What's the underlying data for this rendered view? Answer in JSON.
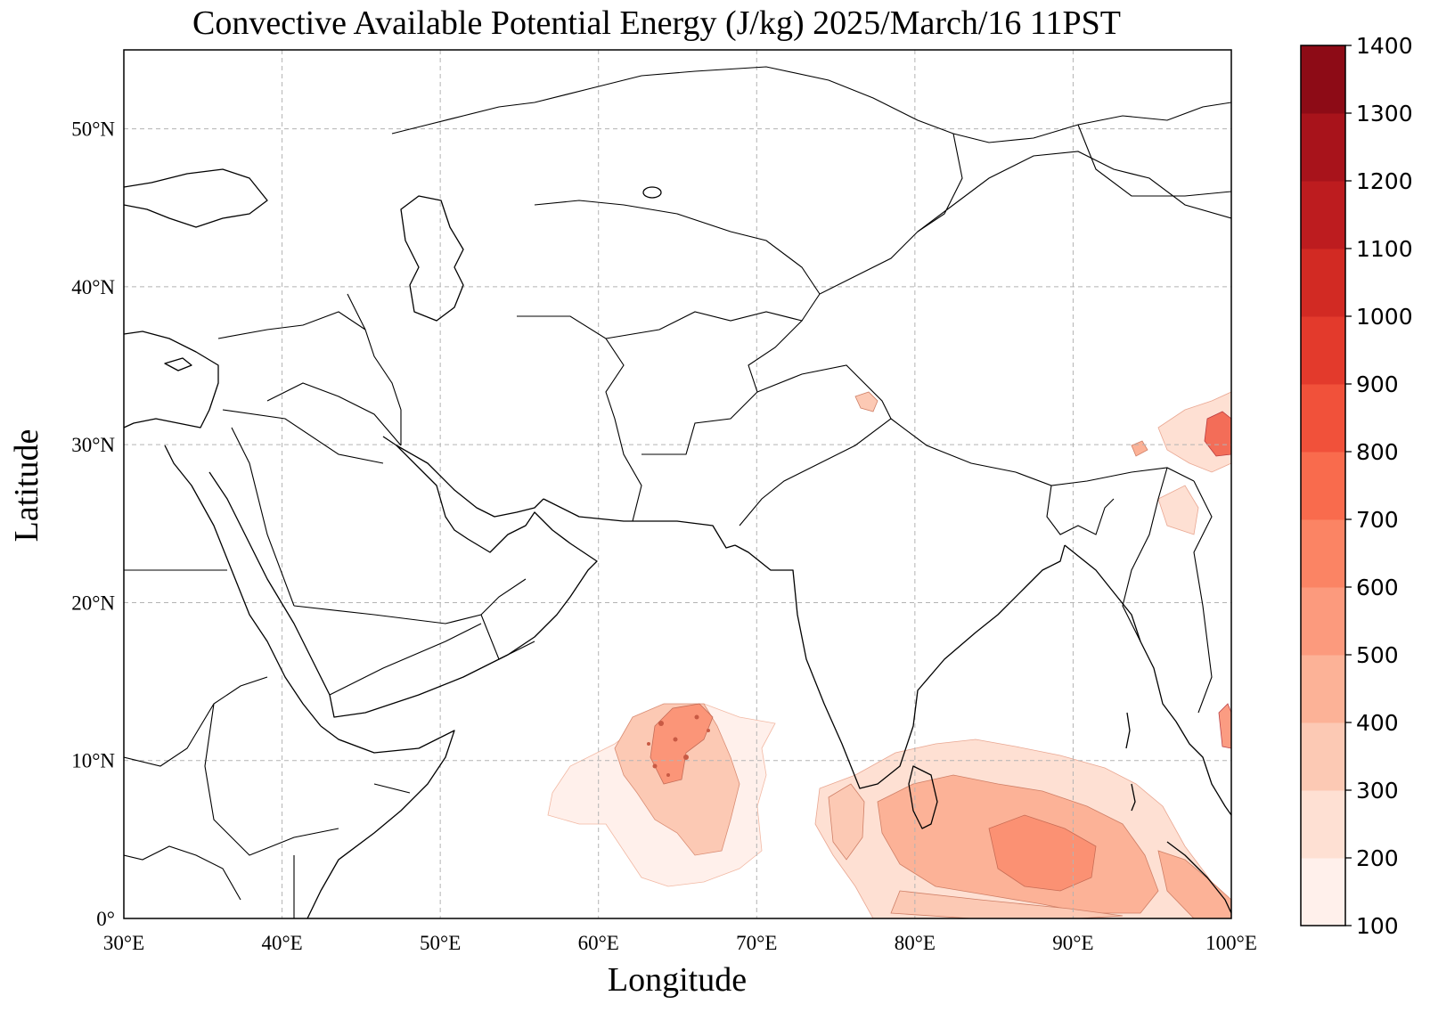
{
  "title": "Convective Available Potential Energy (J/kg)  2025/March/16 11PST",
  "xlabel": "Longitude",
  "ylabel": "Latitude",
  "map": {
    "lon_range": [
      30,
      100
    ],
    "lat_range": [
      0,
      55
    ],
    "lon_ticks": [
      {
        "value": 30,
        "label": "30°E"
      },
      {
        "value": 40,
        "label": "40°E"
      },
      {
        "value": 50,
        "label": "50°E"
      },
      {
        "value": 60,
        "label": "60°E"
      },
      {
        "value": 70,
        "label": "70°E"
      },
      {
        "value": 80,
        "label": "80°E"
      },
      {
        "value": 90,
        "label": "90°E"
      },
      {
        "value": 100,
        "label": "100°E"
      }
    ],
    "lat_ticks": [
      {
        "value": 0,
        "label": "0°"
      },
      {
        "value": 10,
        "label": "10°N"
      },
      {
        "value": 20,
        "label": "20°N"
      },
      {
        "value": 30,
        "label": "30°N"
      },
      {
        "value": 40,
        "label": "40°N"
      },
      {
        "value": 50,
        "label": "50°N"
      }
    ],
    "gridlines": true
  },
  "colorbar": {
    "levels": [
      100,
      200,
      300,
      400,
      500,
      600,
      700,
      800,
      900,
      1000,
      1100,
      1200,
      1300,
      1400
    ],
    "labels": [
      "100",
      "200",
      "300",
      "400",
      "500",
      "600",
      "700",
      "800",
      "900",
      "1000",
      "1100",
      "1200",
      "1300",
      "1400"
    ],
    "colors": [
      "#fff0eb",
      "#fee0d3",
      "#fcc9b4",
      "#fcb297",
      "#fc9a7d",
      "#fb8464",
      "#f96b4d",
      "#f1513a",
      "#e33a2c",
      "#d22a23",
      "#bd1c1f",
      "#a8131b",
      "#8d0b16",
      "#6f0011"
    ],
    "placement": "right"
  },
  "chart_data": {
    "type": "heatmap",
    "title": "Convective Available Potential Energy (J/kg)  2025/March/16 11PST",
    "xlabel": "Longitude",
    "ylabel": "Latitude",
    "x_range": [
      30,
      100
    ],
    "y_range": [
      0,
      55
    ],
    "units": "J/kg",
    "color_levels": [
      100,
      200,
      300,
      400,
      500,
      600,
      700,
      800,
      900,
      1000,
      1100,
      1200,
      1300,
      1400
    ],
    "regions": [
      {
        "lon": 64,
        "lat": 9,
        "value": 400
      },
      {
        "lon": 66,
        "lat": 12,
        "value": 700
      },
      {
        "lon": 60,
        "lat": 7,
        "value": 150
      },
      {
        "lon": 76,
        "lat": 7,
        "value": 400
      },
      {
        "lon": 84,
        "lat": 5,
        "value": 450
      },
      {
        "lon": 89,
        "lat": 4,
        "value": 550
      },
      {
        "lon": 94,
        "lat": 3,
        "value": 350
      },
      {
        "lon": 99,
        "lat": 30,
        "value": 900
      },
      {
        "lon": 97,
        "lat": 31,
        "value": 500
      },
      {
        "lon": 99,
        "lat": 12,
        "value": 800
      },
      {
        "lon": 95,
        "lat": 24,
        "value": 300
      }
    ]
  }
}
